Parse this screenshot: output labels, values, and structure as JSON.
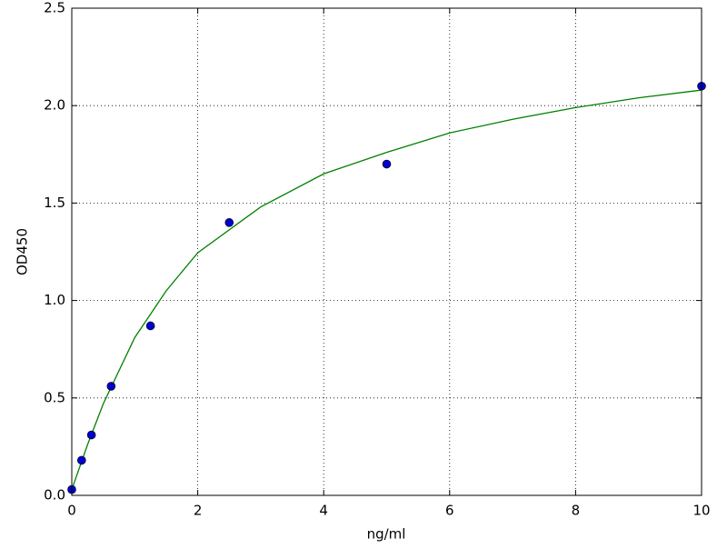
{
  "chart_data": {
    "type": "scatter",
    "xlabel": "ng/ml",
    "ylabel": "OD450",
    "xlim": [
      0,
      10
    ],
    "ylim": [
      0,
      2.5
    ],
    "xticks": [
      0,
      2,
      4,
      6,
      8,
      10
    ],
    "yticks": [
      {
        "value": 0,
        "label": "0.0"
      },
      {
        "value": 0.5,
        "label": "0.5"
      },
      {
        "value": 1,
        "label": "1.0"
      },
      {
        "value": 1.5,
        "label": "1.5"
      },
      {
        "value": 2,
        "label": "2.0"
      },
      {
        "value": 2.5,
        "label": "2.5"
      }
    ],
    "grid": true,
    "series": [
      {
        "kind": "line",
        "color": "#008000",
        "x": [
          0,
          0.25,
          0.5,
          1,
          1.5,
          2,
          3,
          4,
          5,
          6,
          7,
          8,
          9,
          10
        ],
        "values": [
          0.03,
          0.26,
          0.47,
          0.81,
          1.05,
          1.245,
          1.48,
          1.65,
          1.76,
          1.86,
          1.93,
          1.99,
          2.04,
          2.08
        ]
      },
      {
        "kind": "markers",
        "color": "#0000cc",
        "x": [
          0,
          0.156,
          0.312,
          0.625,
          1.25,
          2.5,
          5,
          10
        ],
        "values": [
          0.03,
          0.18,
          0.31,
          0.56,
          0.87,
          1.4,
          1.7,
          2.1
        ]
      }
    ]
  }
}
